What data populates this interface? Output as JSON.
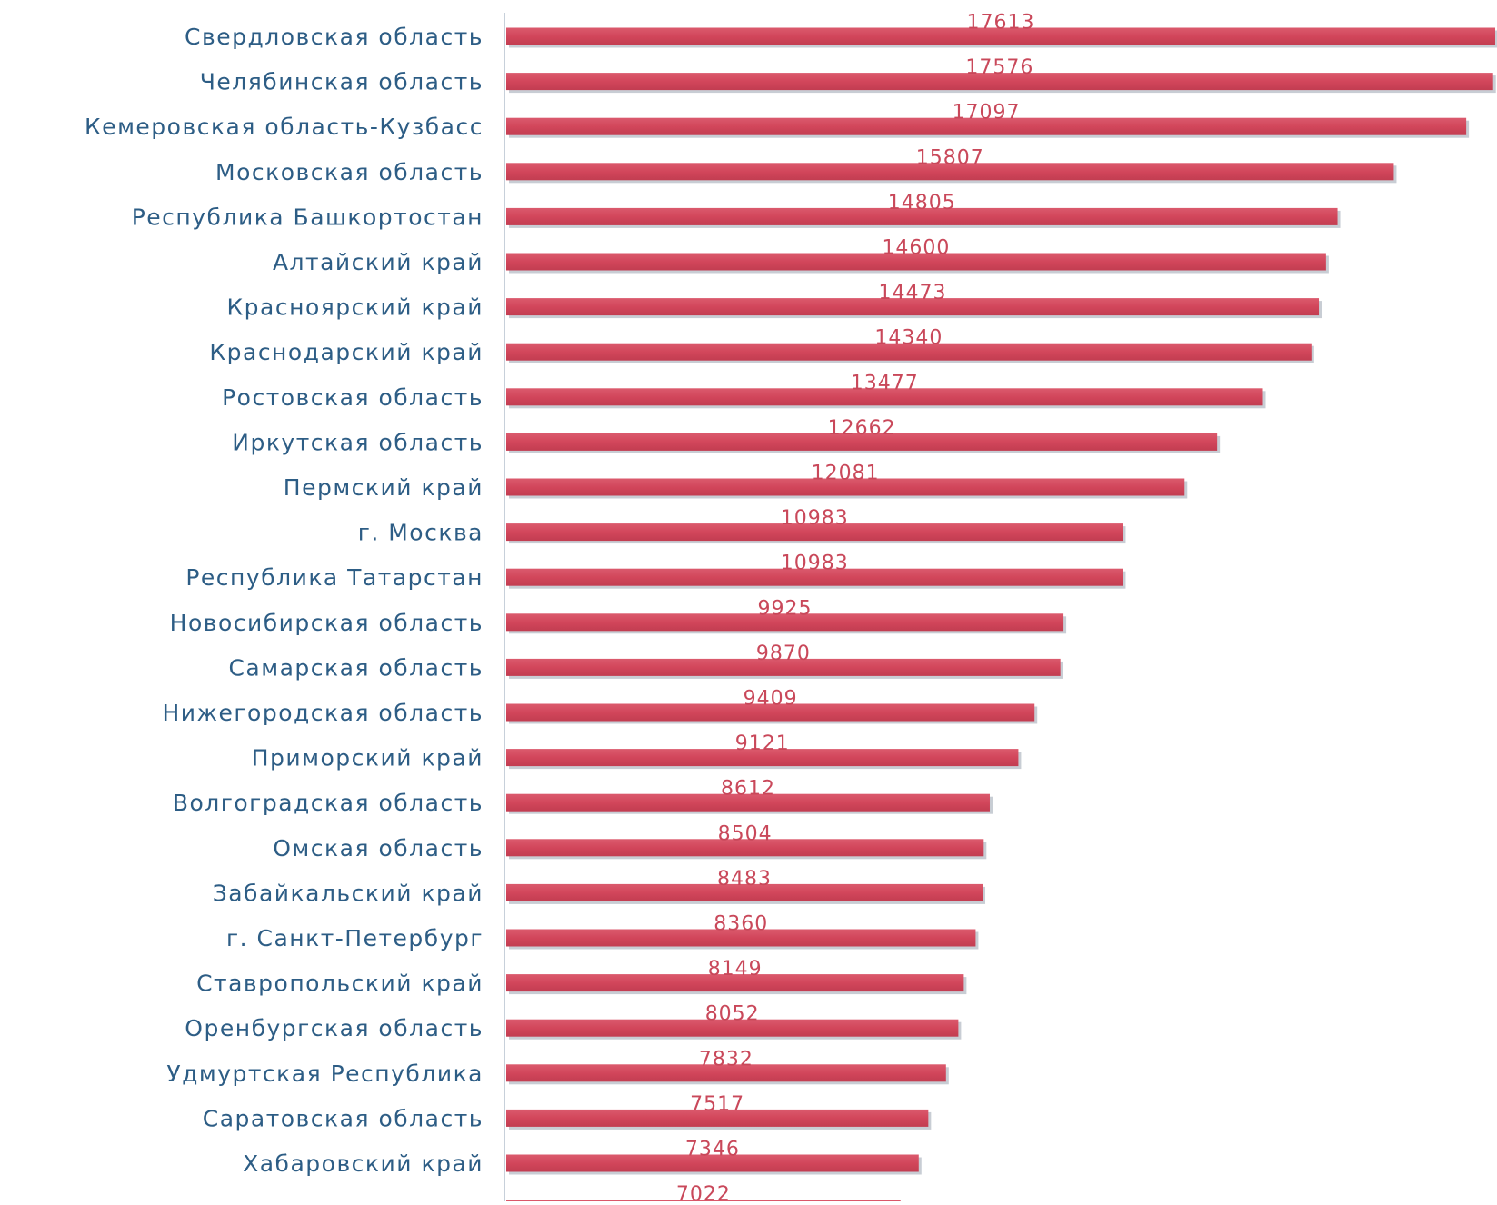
{
  "chart_data": {
    "type": "bar",
    "orientation": "horizontal",
    "categories": [
      "Свердловская область",
      "Челябинская область",
      "Кемеровская область-Кузбасс",
      "Московская область",
      "Республика Башкортостан",
      "Алтайский край",
      "Красноярский край",
      "Краснодарский край",
      "Ростовская область",
      "Иркутская область",
      "Пермский край",
      "г. Москва",
      "Республика Татарстан",
      "Новосибирская область",
      "Самарская область",
      "Нижегородская область",
      "Приморский край",
      "Волгоградская область",
      "Омская область",
      "Забайкальский край",
      "г. Санкт-Петербург",
      "Ставропольский край",
      "Оренбургская область",
      "Удмуртская Республика",
      "Саратовская область",
      "Хабаровский край",
      ""
    ],
    "values": [
      17613,
      17576,
      17097,
      15807,
      14805,
      14600,
      14473,
      14340,
      13477,
      12662,
      12081,
      10983,
      10983,
      9925,
      9870,
      9409,
      9121,
      8612,
      8504,
      8483,
      8360,
      8149,
      8052,
      7832,
      7517,
      7346,
      7022
    ],
    "xlim": [
      0,
      17613
    ],
    "data_labels": true,
    "grid": false,
    "legend": "none",
    "colors": {
      "bar": "#d2465b",
      "bar_shadow": "#c8cdd4",
      "category_text": "#2d5d85",
      "value_text": "#c9485a",
      "axis": "#c7d0da"
    }
  }
}
